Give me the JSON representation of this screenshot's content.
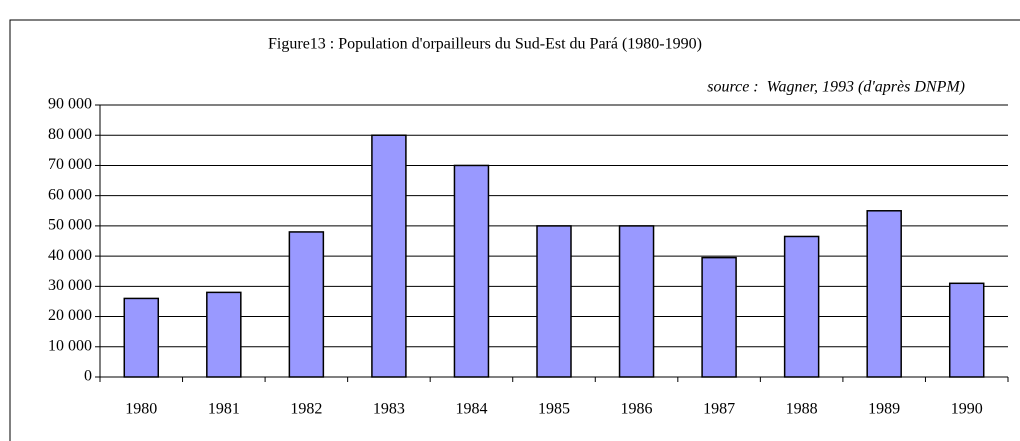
{
  "chart_data": {
    "type": "bar",
    "title": "Figure13 : Population d'orpailleurs du Sud-Est du Pará (1980-1990)",
    "subtitle": "source :  Wagner, 1993 (d'après DNPM)",
    "categories": [
      "1980",
      "1981",
      "1982",
      "1983",
      "1984",
      "1985",
      "1986",
      "1987",
      "1988",
      "1989",
      "1990"
    ],
    "values": [
      26000,
      28000,
      48000,
      80000,
      70000,
      50000,
      50000,
      39500,
      46500,
      55000,
      31000
    ],
    "color": "#9999ff",
    "ylim": [
      0,
      90000
    ],
    "yticks": [
      0,
      {
        "value": 10000,
        "label": "10 000"
      },
      {
        "value": 20000,
        "label": "20 000"
      },
      {
        "value": 30000,
        "label": "30 000"
      },
      {
        "value": 40000,
        "label": "40 000"
      },
      {
        "value": 50000,
        "label": "50 000"
      },
      {
        "value": 60000,
        "label": "60 000"
      },
      {
        "value": 70000,
        "label": "70 000"
      },
      {
        "value": 80000,
        "label": "80 000"
      },
      {
        "value": 90000,
        "label": "90 000"
      }
    ],
    "grid": true
  }
}
